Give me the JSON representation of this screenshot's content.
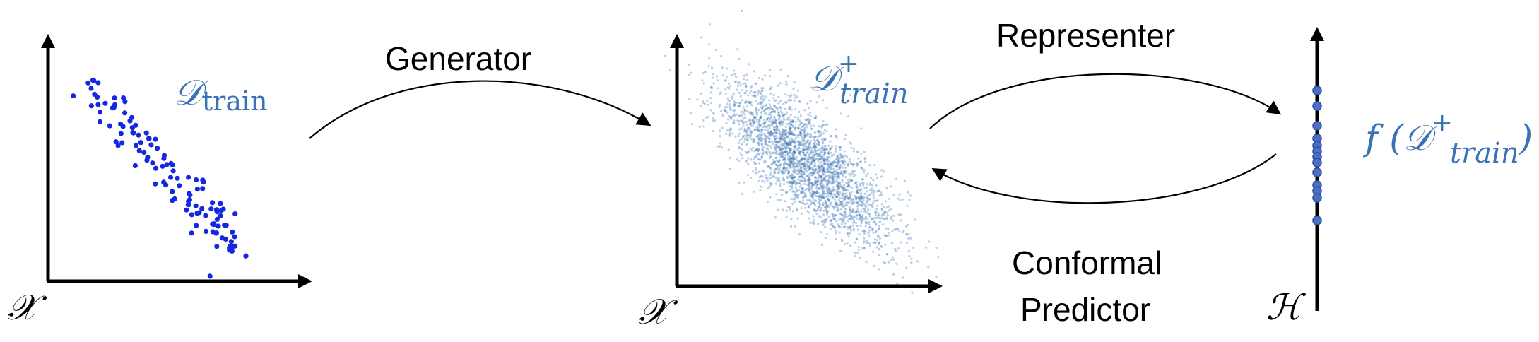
{
  "labels": {
    "generator": "Generator",
    "representer": "Representer",
    "conformal_line1": "Conformal",
    "conformal_line2": "Predictor"
  },
  "math": {
    "d_train": "𝒟",
    "d_train_sub": "train",
    "d_train_plus": "𝒟",
    "d_train_plus_sup": "+",
    "d_train_plus_sub": "train",
    "f_open": "f (𝒟",
    "f_sup": "+",
    "f_sub": "train",
    "f_close": ")"
  },
  "axes": {
    "x_left": "𝒳",
    "x_mid": "𝒳",
    "h_right": "ℋ"
  },
  "colors": {
    "blue_points": "#1428e0",
    "blue_cloud": "#3a73b5",
    "blue_text": "#3a73b5",
    "node_fill": "#4a6fc4",
    "ink": "#000000"
  }
}
